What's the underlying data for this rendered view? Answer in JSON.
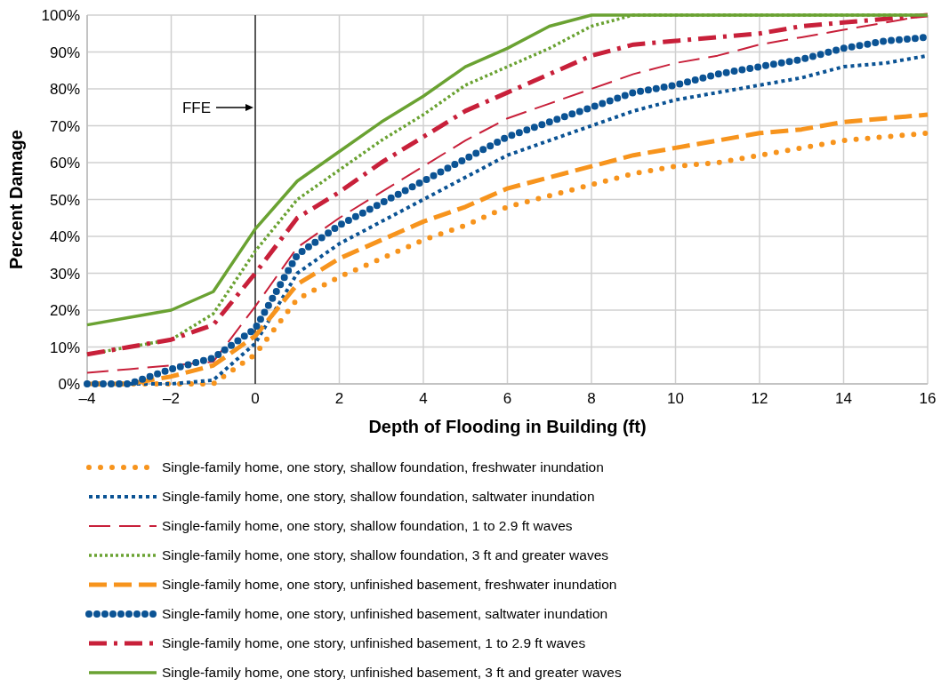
{
  "chart_data": {
    "type": "line",
    "xlabel": "Depth of Flooding in Building (ft)",
    "ylabel": "Percent Damage",
    "x": [
      -4,
      -3,
      -2,
      -1,
      0,
      1,
      2,
      3,
      4,
      5,
      6,
      7,
      8,
      9,
      10,
      11,
      12,
      13,
      14,
      15,
      16
    ],
    "xlim": [
      -4,
      16
    ],
    "xticks": [
      {
        "value": -4,
        "label": "–4"
      },
      {
        "value": -2,
        "label": "–2"
      },
      0,
      2,
      4,
      6,
      8,
      10,
      12,
      14,
      16
    ],
    "ylim": [
      0,
      100
    ],
    "yticks": [
      {
        "value": 0,
        "label": "0%"
      },
      {
        "value": 10,
        "label": "10%"
      },
      {
        "value": 20,
        "label": "20%"
      },
      {
        "value": 30,
        "label": "30%"
      },
      {
        "value": 40,
        "label": "40%"
      },
      {
        "value": 50,
        "label": "50%"
      },
      {
        "value": 60,
        "label": "60%"
      },
      {
        "value": 70,
        "label": "70%"
      },
      {
        "value": 80,
        "label": "80%"
      },
      {
        "value": 90,
        "label": "90%"
      },
      {
        "value": 100,
        "label": "100%"
      }
    ],
    "grid": true,
    "legend": "bottom",
    "ref_lines": [
      {
        "axis": "x",
        "value": 0,
        "label": "FFE",
        "color": "#000000"
      }
    ],
    "series": [
      {
        "name": "Single-family home, one story, shallow foundation, freshwater inundation",
        "color": "#f7941d",
        "line_style": "dotted",
        "values": [
          0,
          0,
          0,
          0,
          8,
          23,
          29,
          34,
          39,
          43,
          48,
          51,
          54,
          57,
          59,
          60,
          62,
          64,
          66,
          67,
          68
        ]
      },
      {
        "name": "Single-family home, one story, shallow foundation, saltwater inundation",
        "color": "#0b5394",
        "line_style": "dotted",
        "values": [
          0,
          0,
          0,
          1,
          11,
          30,
          38,
          44,
          50,
          56,
          62,
          66,
          70,
          74,
          77,
          79,
          81,
          83,
          86,
          87,
          89
        ]
      },
      {
        "name": "Single-family home, one story, shallow foundation, 1 to 2.9 ft waves",
        "color": "#c8203a",
        "line_style": "dashed",
        "values": [
          3,
          4,
          5,
          6,
          21,
          37,
          45,
          52,
          59,
          66,
          72,
          76,
          80,
          84,
          87,
          89,
          92,
          94,
          96,
          98,
          100
        ]
      },
      {
        "name": "Single-family home, one story, shallow foundation, 3 ft and greater waves",
        "color": "#6aa232",
        "line_style": "dotted",
        "values": [
          8,
          10,
          12,
          19,
          36,
          50,
          58,
          66,
          73,
          81,
          86,
          91,
          97,
          100,
          100,
          100,
          100,
          100,
          100,
          100,
          100
        ]
      },
      {
        "name": "Single-family home, one story, unfinished basement, freshwater inundation",
        "color": "#f7941d",
        "line_style": "dashed",
        "values": [
          0,
          0,
          2,
          5,
          13,
          27,
          34,
          39,
          44,
          48,
          53,
          56,
          59,
          62,
          64,
          66,
          68,
          69,
          71,
          72,
          73
        ]
      },
      {
        "name": "Single-family home, one story, unfinished basement, saltwater inundation",
        "color": "#0b5394",
        "line_style": "dotted",
        "values": [
          0,
          0,
          4,
          7,
          15,
          35,
          43,
          49,
          55,
          61,
          67,
          71,
          75,
          79,
          81,
          84,
          86,
          88,
          91,
          93,
          94
        ]
      },
      {
        "name": "Single-family home, one story, unfinished basement, 1 to 2.9 ft waves",
        "color": "#c8203a",
        "line_style": "dashdot",
        "values": [
          8,
          10,
          12,
          16,
          30,
          45,
          52,
          60,
          67,
          74,
          79,
          84,
          89,
          92,
          93,
          94,
          95,
          97,
          98,
          99,
          100
        ]
      },
      {
        "name": "Single-family home, one story, unfinished basement, 3 ft and greater waves",
        "color": "#6aa232",
        "line_style": "solid",
        "values": [
          16,
          18,
          20,
          25,
          42,
          55,
          63,
          71,
          78,
          86,
          91,
          97,
          100,
          100,
          100,
          100,
          100,
          100,
          100,
          100,
          100
        ]
      }
    ]
  }
}
